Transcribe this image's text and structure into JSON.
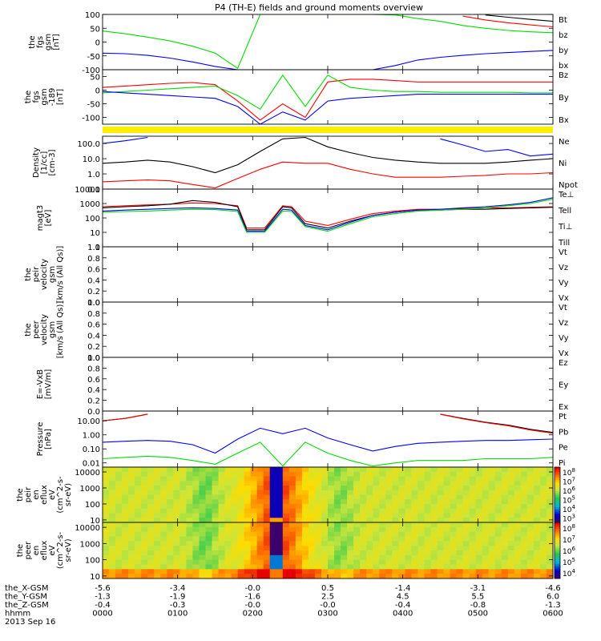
{
  "title": "P4 (TH-E) fields and ground moments overview",
  "chart_data": [
    {
      "type": "line",
      "panel": "fgs",
      "ylabel_lines": [
        "the",
        "fgs",
        "gsm",
        "[nT]"
      ],
      "ylim": [
        -100,
        100
      ],
      "yticks": [
        -100,
        -50,
        0,
        50,
        100
      ],
      "x": [
        0,
        0.05,
        0.1,
        0.15,
        0.2,
        0.25,
        0.3,
        0.35,
        0.4,
        0.45,
        0.5,
        0.55,
        0.6,
        0.65,
        0.7,
        0.75,
        0.8,
        0.85,
        0.9,
        0.95,
        1.0
      ],
      "legend": [
        "Bt",
        "bz",
        "by",
        "bx"
      ],
      "series": [
        {
          "name": "Bt",
          "color": "#000000",
          "values": [
            null,
            null,
            null,
            null,
            null,
            null,
            null,
            null,
            null,
            null,
            null,
            null,
            null,
            null,
            null,
            null,
            null,
            98,
            90,
            82,
            75
          ]
        },
        {
          "name": "bz",
          "color": "#ff0000",
          "values": [
            null,
            null,
            null,
            null,
            null,
            null,
            null,
            null,
            null,
            null,
            null,
            null,
            null,
            null,
            null,
            null,
            94,
            80,
            70,
            62,
            55
          ]
        },
        {
          "name": "by",
          "color": "#00dd00",
          "values": [
            40,
            30,
            18,
            4,
            -15,
            -40,
            -95,
            100,
            100,
            100,
            100,
            100,
            100,
            98,
            85,
            75,
            60,
            50,
            42,
            37,
            34
          ]
        },
        {
          "name": "bx",
          "color": "#0000ff",
          "values": [
            -40,
            -42,
            -48,
            -58,
            -72,
            -88,
            -100,
            -100,
            -100,
            -100,
            -100,
            -100,
            -100,
            -85,
            -65,
            -55,
            -48,
            -42,
            -38,
            -34,
            -30
          ]
        }
      ]
    },
    {
      "type": "line",
      "panel": "fgs-zoom",
      "ylabel_lines": [
        "the",
        "fgs",
        "gsm",
        "-189",
        "[nT]"
      ],
      "ylim": [
        -125,
        75
      ],
      "yticks": [
        -100,
        -50,
        0,
        50
      ],
      "x": [
        0,
        0.05,
        0.1,
        0.15,
        0.2,
        0.25,
        0.3,
        0.35,
        0.4,
        0.45,
        0.5,
        0.55,
        0.6,
        0.65,
        0.7,
        0.75,
        0.8,
        0.85,
        0.9,
        0.95,
        1.0
      ],
      "legend": [
        "Bz",
        "By",
        "Bx"
      ],
      "series": [
        {
          "name": "Bz",
          "color": "#ff0000",
          "values": [
            10,
            15,
            20,
            25,
            28,
            20,
            -40,
            -110,
            -50,
            -100,
            30,
            40,
            40,
            35,
            30,
            30,
            30,
            30,
            30,
            30,
            30
          ]
        },
        {
          "name": "By",
          "color": "#00dd00",
          "values": [
            -10,
            -5,
            0,
            5,
            10,
            15,
            -20,
            -70,
            55,
            -60,
            55,
            10,
            0,
            -5,
            -5,
            -8,
            -8,
            -8,
            -8,
            -10,
            -10
          ]
        },
        {
          "name": "Bx",
          "color": "#0000ff",
          "values": [
            -5,
            -10,
            -15,
            -20,
            -25,
            -30,
            -60,
            -125,
            -80,
            -110,
            -40,
            -30,
            -25,
            -20,
            -15,
            -15,
            -15,
            -15,
            -15,
            -15,
            -15
          ]
        }
      ]
    },
    {
      "type": "line",
      "panel": "density",
      "ylabel_lines": [
        "Density",
        "[1/cc]",
        "[cm-3]"
      ],
      "log": true,
      "ylim": [
        0.1,
        300
      ],
      "yticks": [
        0.1,
        1.0,
        10.0,
        100.0
      ],
      "ytick_labels": [
        "0.1",
        "1.0",
        "10.0",
        "100.0"
      ],
      "x": [
        0,
        0.05,
        0.1,
        0.15,
        0.2,
        0.25,
        0.3,
        0.35,
        0.4,
        0.45,
        0.5,
        0.55,
        0.6,
        0.65,
        0.7,
        0.75,
        0.8,
        0.85,
        0.9,
        0.95,
        1.0
      ],
      "legend": [
        "Ne",
        "Ni",
        "Npot"
      ],
      "series": [
        {
          "name": "Ni",
          "color": "#000000",
          "values": [
            5,
            6,
            8,
            6,
            3,
            1.2,
            4,
            30,
            200,
            250,
            60,
            25,
            12,
            8,
            6,
            5,
            5,
            5,
            6,
            8,
            10
          ]
        },
        {
          "name": "Ne",
          "color": "#ff0000",
          "values": [
            0.3,
            0.35,
            0.4,
            0.35,
            0.2,
            0.12,
            0.5,
            2,
            6,
            5,
            5,
            2,
            1,
            0.6,
            0.6,
            0.6,
            0.7,
            0.8,
            1,
            1,
            1.2
          ]
        },
        {
          "name": "Npot",
          "color": "#0000ff",
          "values": [
            100,
            150,
            250,
            null,
            null,
            null,
            null,
            null,
            null,
            null,
            null,
            null,
            null,
            null,
            null,
            200,
            80,
            30,
            40,
            15,
            20
          ]
        }
      ]
    },
    {
      "type": "line",
      "panel": "temperature",
      "ylabel_lines": [
        "magt3",
        "[eV]"
      ],
      "log": true,
      "ylim": [
        1,
        10000
      ],
      "yticks": [
        1,
        10,
        100,
        1000,
        10000
      ],
      "ytick_labels": [
        "1",
        "10",
        "100",
        "1000",
        "10000"
      ],
      "x": [
        0,
        0.05,
        0.1,
        0.15,
        0.2,
        0.25,
        0.3,
        0.32,
        0.34,
        0.36,
        0.4,
        0.42,
        0.45,
        0.5,
        0.55,
        0.6,
        0.65,
        0.7,
        0.75,
        0.8,
        0.85,
        0.9,
        0.95,
        1.0
      ],
      "legend": [
        "Te⊥",
        "Tell",
        "Ti⊥",
        "Till"
      ],
      "series": [
        {
          "name": "Te⊥",
          "color": "#ff0000",
          "values": [
            600,
            700,
            800,
            900,
            1100,
            1000,
            700,
            20,
            20,
            20,
            700,
            600,
            60,
            30,
            80,
            200,
            300,
            400,
            400,
            450,
            500,
            500,
            550,
            600
          ]
        },
        {
          "name": "Tell",
          "color": "#000000",
          "values": [
            500,
            600,
            700,
            900,
            1600,
            1200,
            600,
            15,
            15,
            15,
            600,
            500,
            40,
            20,
            60,
            150,
            250,
            350,
            350,
            400,
            400,
            450,
            500,
            550
          ]
        },
        {
          "name": "Ti⊥",
          "color": "#0000ff",
          "values": [
            300,
            350,
            400,
            450,
            500,
            450,
            350,
            12,
            12,
            12,
            400,
            350,
            30,
            15,
            50,
            150,
            250,
            350,
            400,
            500,
            600,
            800,
            1200,
            2500
          ]
        },
        {
          "name": "Till",
          "color": "#00dd00",
          "values": [
            250,
            280,
            300,
            350,
            400,
            380,
            280,
            10,
            10,
            10,
            300,
            280,
            25,
            12,
            40,
            120,
            200,
            300,
            350,
            400,
            500,
            700,
            1000,
            2000
          ]
        }
      ]
    },
    {
      "type": "line",
      "panel": "velocity-peir",
      "ylabel_lines": [
        "the",
        "peir",
        "velocity",
        "gsm",
        "[km/s (All Qs)]"
      ],
      "ylim": [
        0,
        1
      ],
      "yticks": [
        0.0,
        0.2,
        0.4,
        0.6,
        0.8,
        1.0
      ],
      "legend": [
        "Vt",
        "Vz",
        "Vy",
        "Vx"
      ],
      "series": []
    },
    {
      "type": "line",
      "panel": "velocity-peer",
      "ylabel_lines": [
        "the",
        "peer",
        "velocity",
        "gsm",
        "[km/s (All Qs)]"
      ],
      "ylim": [
        0,
        1
      ],
      "yticks": [
        0.0,
        0.2,
        0.4,
        0.6,
        0.8,
        1.0
      ],
      "legend": [
        "Vt",
        "Vz",
        "Vy",
        "Vx"
      ],
      "series": []
    },
    {
      "type": "line",
      "panel": "efield",
      "ylabel_lines": [
        "E=-VxB",
        "[mV/m]"
      ],
      "ylim": [
        0,
        1
      ],
      "yticks": [
        0.0,
        0.2,
        0.4,
        0.6,
        0.8,
        1.0
      ],
      "legend": [
        "Ez",
        "Ey",
        "Ex"
      ],
      "series": []
    },
    {
      "type": "line",
      "panel": "pressure",
      "ylabel_lines": [
        "Pressure",
        "[nPa]"
      ],
      "log": true,
      "ylim": [
        0.005,
        50
      ],
      "yticks": [
        0.01,
        0.1,
        1.0,
        10.0
      ],
      "ytick_labels": [
        "0.01",
        "0.10",
        "1.00",
        "10.00"
      ],
      "x": [
        0,
        0.05,
        0.1,
        0.15,
        0.2,
        0.25,
        0.3,
        0.35,
        0.4,
        0.45,
        0.5,
        0.55,
        0.6,
        0.65,
        0.7,
        0.75,
        0.8,
        0.85,
        0.9,
        0.95,
        1.0
      ],
      "legend": [
        "Pt",
        "Pb",
        "Pe",
        "Pi"
      ],
      "series": [
        {
          "name": "Pt",
          "color": "#000000",
          "values": [
            10,
            15,
            30,
            null,
            null,
            null,
            null,
            null,
            null,
            null,
            null,
            null,
            null,
            null,
            null,
            30,
            15,
            8,
            5,
            2.5,
            1.5
          ]
        },
        {
          "name": "Pb",
          "color": "#ff0000",
          "values": [
            10,
            15,
            30,
            null,
            null,
            null,
            null,
            null,
            null,
            null,
            null,
            null,
            null,
            null,
            null,
            29,
            14,
            7.5,
            4.5,
            2.2,
            1.3
          ]
        },
        {
          "name": "Pi",
          "color": "#0000ff",
          "values": [
            0.3,
            0.35,
            0.4,
            0.35,
            0.2,
            0.05,
            0.5,
            3,
            1.2,
            3,
            0.6,
            0.2,
            0.07,
            0.15,
            0.25,
            0.3,
            0.35,
            0.4,
            0.4,
            0.45,
            0.5
          ]
        },
        {
          "name": "Pe",
          "color": "#00dd00",
          "values": [
            0.02,
            0.025,
            0.03,
            0.025,
            0.015,
            0.008,
            0.05,
            0.3,
            0.006,
            0.3,
            0.05,
            0.015,
            0.006,
            0.01,
            0.015,
            0.015,
            0.015,
            0.02,
            0.02,
            0.02,
            0.025
          ]
        }
      ]
    },
    {
      "type": "heatmap",
      "panel": "peir-eflux",
      "ylabel_lines": [
        "the",
        "peir",
        "en",
        "eflux",
        "eV",
        "(cm^2-s-",
        "sr-eV)"
      ],
      "log": true,
      "ylim": [
        7,
        20000
      ],
      "yticks": [
        10,
        100,
        1000,
        10000
      ],
      "ytick_labels": [
        "10",
        "100",
        "1000",
        "10000"
      ],
      "colorbar_labels": [
        "10^3",
        "10^4",
        "10^5",
        "10^6",
        "10^7",
        "10^8"
      ]
    },
    {
      "type": "heatmap",
      "panel": "peer-eflux",
      "ylabel_lines": [
        "the",
        "peer",
        "en",
        "eflux",
        "eV",
        "(cm^2-s-",
        "sr-eV)"
      ],
      "log": true,
      "ylim": [
        7,
        20000
      ],
      "yticks": [
        10,
        100,
        1000,
        10000
      ],
      "ytick_labels": [
        "10",
        "100",
        "1000",
        "10000"
      ],
      "colorbar_labels": [
        "10^4",
        "10^5",
        "10^6",
        "10^7",
        "10^8"
      ]
    }
  ],
  "ephemeris": {
    "rows": [
      {
        "label": "the_X-GSM",
        "values": [
          "-5.6",
          "-3.4",
          "-0.0",
          "0.5",
          "-1.4",
          "-3.1",
          "-4.6"
        ]
      },
      {
        "label": "the_Y-GSM",
        "values": [
          "-1.3",
          "-1.9",
          "-1.6",
          "2.5",
          "4.5",
          "5.5",
          "6.0"
        ]
      },
      {
        "label": "the_Z-GSM",
        "values": [
          "-0.4",
          "-0.3",
          "-0.0",
          "-0.0",
          "-0.4",
          "-0.8",
          "-1.3"
        ]
      },
      {
        "label": "hhmm",
        "values": [
          "0000",
          "0100",
          "0200",
          "0300",
          "0400",
          "0500",
          "0600"
        ]
      }
    ],
    "date": "2013 Sep 16"
  }
}
